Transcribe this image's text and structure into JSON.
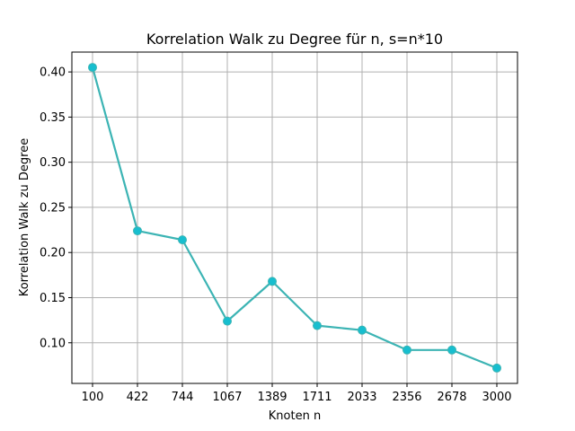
{
  "chart_data": {
    "type": "line",
    "title": "Korrelation Walk zu Degree für n, s=n*10",
    "xlabel": "Knoten n",
    "ylabel": "Korrelation Walk zu Degree",
    "categories": [
      "100",
      "422",
      "744",
      "1067",
      "1389",
      "1711",
      "2033",
      "2356",
      "2678",
      "3000"
    ],
    "series": [
      {
        "values": [
          0.405,
          0.224,
          0.214,
          0.124,
          0.168,
          0.119,
          0.114,
          0.092,
          0.092,
          0.072
        ]
      }
    ],
    "ylim": [
      0.055,
      0.422
    ],
    "yticks": [
      0.1,
      0.15,
      0.2,
      0.25,
      0.3,
      0.35,
      0.4
    ],
    "ytick_labels": [
      "0.10",
      "0.15",
      "0.20",
      "0.25",
      "0.30",
      "0.35",
      "0.40"
    ],
    "grid": true,
    "line_color": "#3cb4b4",
    "marker_color": "#17becf"
  }
}
